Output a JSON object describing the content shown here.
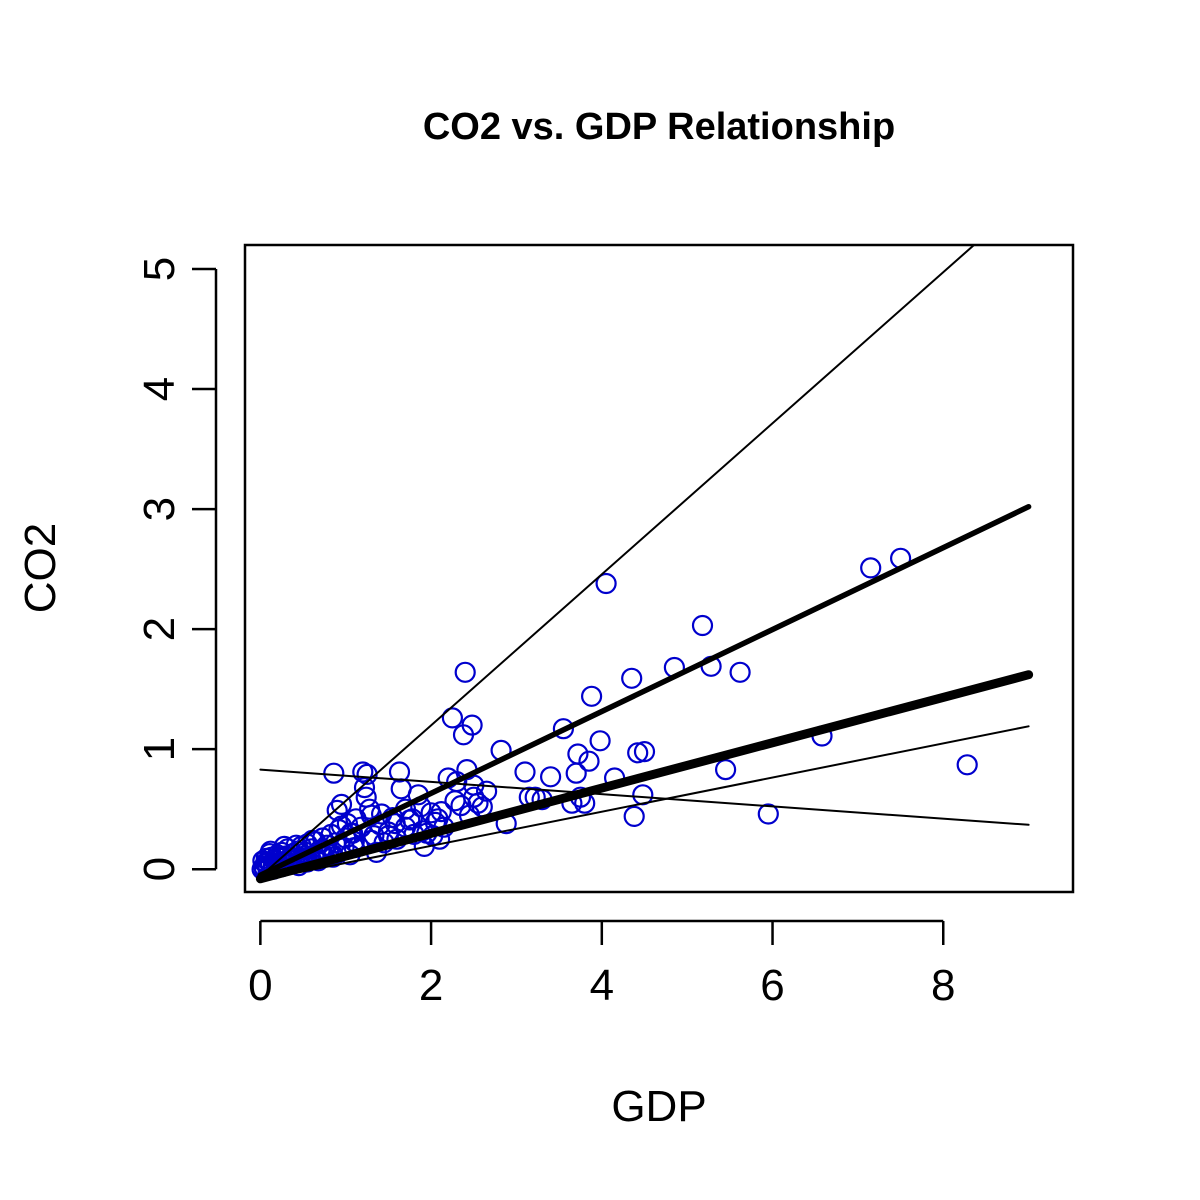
{
  "chart_data": {
    "type": "scatter",
    "title": "CO2 vs. GDP Relationship",
    "xlabel": "GDP",
    "ylabel": "CO2",
    "xlim": [
      -0.18,
      9.52
    ],
    "ylim": [
      -0.19,
      5.2
    ],
    "xticks": [
      0,
      2,
      4,
      6,
      8
    ],
    "yticks": [
      0,
      1,
      2,
      3,
      4,
      5
    ],
    "grid": false,
    "point_color": "#0000CD",
    "line_color": "#000000",
    "points": [
      [
        0.02,
        0.0
      ],
      [
        0.04,
        0.02
      ],
      [
        0.05,
        -0.01
      ],
      [
        0.06,
        0.05
      ],
      [
        0.08,
        0.03
      ],
      [
        0.09,
        0.0
      ],
      [
        0.1,
        0.06
      ],
      [
        0.12,
        0.04
      ],
      [
        0.13,
        0.1
      ],
      [
        0.15,
        0.02
      ],
      [
        0.16,
        0.08
      ],
      [
        0.18,
        0.05
      ],
      [
        0.2,
        0.12
      ],
      [
        0.22,
        0.03
      ],
      [
        0.24,
        0.09
      ],
      [
        0.25,
        0.14
      ],
      [
        0.27,
        0.06
      ],
      [
        0.3,
        0.11
      ],
      [
        0.32,
        0.17
      ],
      [
        0.35,
        0.04
      ],
      [
        0.38,
        0.13
      ],
      [
        0.4,
        0.08
      ],
      [
        0.43,
        0.15
      ],
      [
        0.45,
        0.1
      ],
      [
        0.48,
        0.19
      ],
      [
        0.5,
        0.06
      ],
      [
        0.53,
        0.14
      ],
      [
        0.55,
        0.21
      ],
      [
        0.58,
        0.09
      ],
      [
        0.6,
        0.17
      ],
      [
        0.63,
        0.12
      ],
      [
        0.65,
        0.23
      ],
      [
        0.68,
        0.07
      ],
      [
        0.7,
        0.16
      ],
      [
        0.73,
        0.26
      ],
      [
        0.75,
        0.11
      ],
      [
        0.78,
        0.2
      ],
      [
        0.8,
        0.14
      ],
      [
        0.83,
        0.29
      ],
      [
        0.85,
        0.1
      ],
      [
        0.88,
        0.22
      ],
      [
        0.9,
        0.49
      ],
      [
        0.92,
        0.33
      ],
      [
        0.95,
        0.54
      ],
      [
        0.98,
        0.18
      ],
      [
        1.0,
        0.26
      ],
      [
        1.02,
        0.38
      ],
      [
        1.05,
        0.12
      ],
      [
        1.08,
        0.3
      ],
      [
        1.1,
        0.23
      ],
      [
        1.12,
        0.42
      ],
      [
        1.15,
        0.19
      ],
      [
        1.18,
        0.35
      ],
      [
        1.2,
        0.81
      ],
      [
        1.22,
        0.68
      ],
      [
        1.25,
        0.79
      ],
      [
        1.28,
        0.5
      ],
      [
        1.3,
        0.45
      ],
      [
        1.33,
        0.28
      ],
      [
        1.36,
        0.14
      ],
      [
        1.4,
        0.37
      ],
      [
        1.45,
        0.22
      ],
      [
        1.5,
        0.31
      ],
      [
        1.55,
        0.43
      ],
      [
        1.6,
        0.25
      ],
      [
        1.63,
        0.81
      ],
      [
        1.65,
        0.67
      ],
      [
        1.7,
        0.35
      ],
      [
        1.75,
        0.41
      ],
      [
        1.8,
        0.29
      ],
      [
        1.85,
        0.62
      ],
      [
        1.88,
        0.52
      ],
      [
        1.92,
        0.19
      ],
      [
        1.95,
        0.3
      ],
      [
        2.0,
        0.47
      ],
      [
        2.05,
        0.39
      ],
      [
        2.1,
        0.25
      ],
      [
        2.15,
        0.35
      ],
      [
        2.2,
        0.76
      ],
      [
        2.25,
        1.26
      ],
      [
        2.3,
        0.73
      ],
      [
        2.35,
        0.53
      ],
      [
        2.38,
        1.12
      ],
      [
        2.4,
        1.64
      ],
      [
        2.42,
        0.83
      ],
      [
        2.45,
        0.45
      ],
      [
        2.48,
        1.2
      ],
      [
        2.5,
        0.6
      ],
      [
        2.55,
        0.55
      ],
      [
        2.65,
        0.65
      ],
      [
        2.82,
        0.99
      ],
      [
        2.88,
        0.38
      ],
      [
        3.1,
        0.81
      ],
      [
        3.15,
        0.6
      ],
      [
        3.3,
        0.58
      ],
      [
        3.4,
        0.77
      ],
      [
        3.55,
        1.17
      ],
      [
        3.65,
        0.55
      ],
      [
        3.7,
        0.8
      ],
      [
        3.72,
        0.96
      ],
      [
        3.8,
        0.55
      ],
      [
        3.85,
        0.9
      ],
      [
        3.88,
        1.44
      ],
      [
        3.98,
        1.07
      ],
      [
        4.05,
        2.38
      ],
      [
        4.15,
        0.76
      ],
      [
        4.35,
        1.59
      ],
      [
        4.38,
        0.44
      ],
      [
        4.42,
        0.97
      ],
      [
        4.48,
        0.62
      ],
      [
        4.5,
        0.98
      ],
      [
        4.85,
        1.68
      ],
      [
        5.18,
        2.03
      ],
      [
        5.28,
        1.69
      ],
      [
        5.45,
        0.83
      ],
      [
        5.62,
        1.64
      ],
      [
        5.95,
        0.46
      ],
      [
        6.58,
        1.11
      ],
      [
        7.15,
        2.51
      ],
      [
        7.5,
        2.59
      ],
      [
        8.28,
        0.87
      ],
      [
        0.07,
        0.09
      ],
      [
        0.11,
        0.13
      ],
      [
        0.19,
        0.07
      ],
      [
        0.28,
        0.19
      ],
      [
        0.33,
        0.08
      ],
      [
        0.42,
        0.2
      ],
      [
        0.52,
        0.11
      ],
      [
        0.61,
        0.24
      ],
      [
        0.71,
        0.13
      ],
      [
        0.86,
        0.8
      ],
      [
        1.06,
        0.3
      ],
      [
        1.24,
        0.6
      ],
      [
        1.42,
        0.46
      ],
      [
        1.58,
        0.38
      ],
      [
        1.78,
        0.42
      ],
      [
        2.02,
        0.28
      ],
      [
        2.12,
        0.48
      ],
      [
        2.28,
        0.57
      ],
      [
        2.5,
        0.7
      ],
      [
        2.6,
        0.52
      ],
      [
        3.22,
        0.6
      ],
      [
        3.75,
        0.6
      ],
      [
        1.7,
        0.5
      ],
      [
        1.9,
        0.32
      ],
      [
        2.08,
        0.42
      ],
      [
        0.95,
        0.36
      ],
      [
        1.1,
        0.18
      ],
      [
        1.3,
        0.24
      ],
      [
        1.5,
        0.28
      ],
      [
        0.55,
        0.06
      ],
      [
        0.65,
        0.1
      ],
      [
        0.75,
        0.16
      ],
      [
        0.85,
        0.12
      ],
      [
        0.45,
        0.03
      ],
      [
        0.35,
        0.1
      ],
      [
        0.15,
        0.0
      ],
      [
        0.25,
        0.02
      ],
      [
        0.03,
        0.07
      ],
      [
        0.12,
        0.15
      ]
    ],
    "lines": [
      {
        "x": [
          0,
          9.0
        ],
        "y": [
          -0.05,
          3.02
        ],
        "weight": "bold"
      },
      {
        "x": [
          0,
          9.0
        ],
        "y": [
          -0.08,
          1.62
        ],
        "weight": "heavy"
      },
      {
        "x": [
          0,
          9.0
        ],
        "y": [
          -0.09,
          1.19
        ],
        "weight": "thin"
      },
      {
        "x": [
          0,
          9.0
        ],
        "y": [
          0.83,
          0.37
        ],
        "weight": "thin"
      },
      {
        "x": [
          0,
          8.36
        ],
        "y": [
          -0.06,
          5.2
        ],
        "weight": "thin"
      }
    ]
  }
}
